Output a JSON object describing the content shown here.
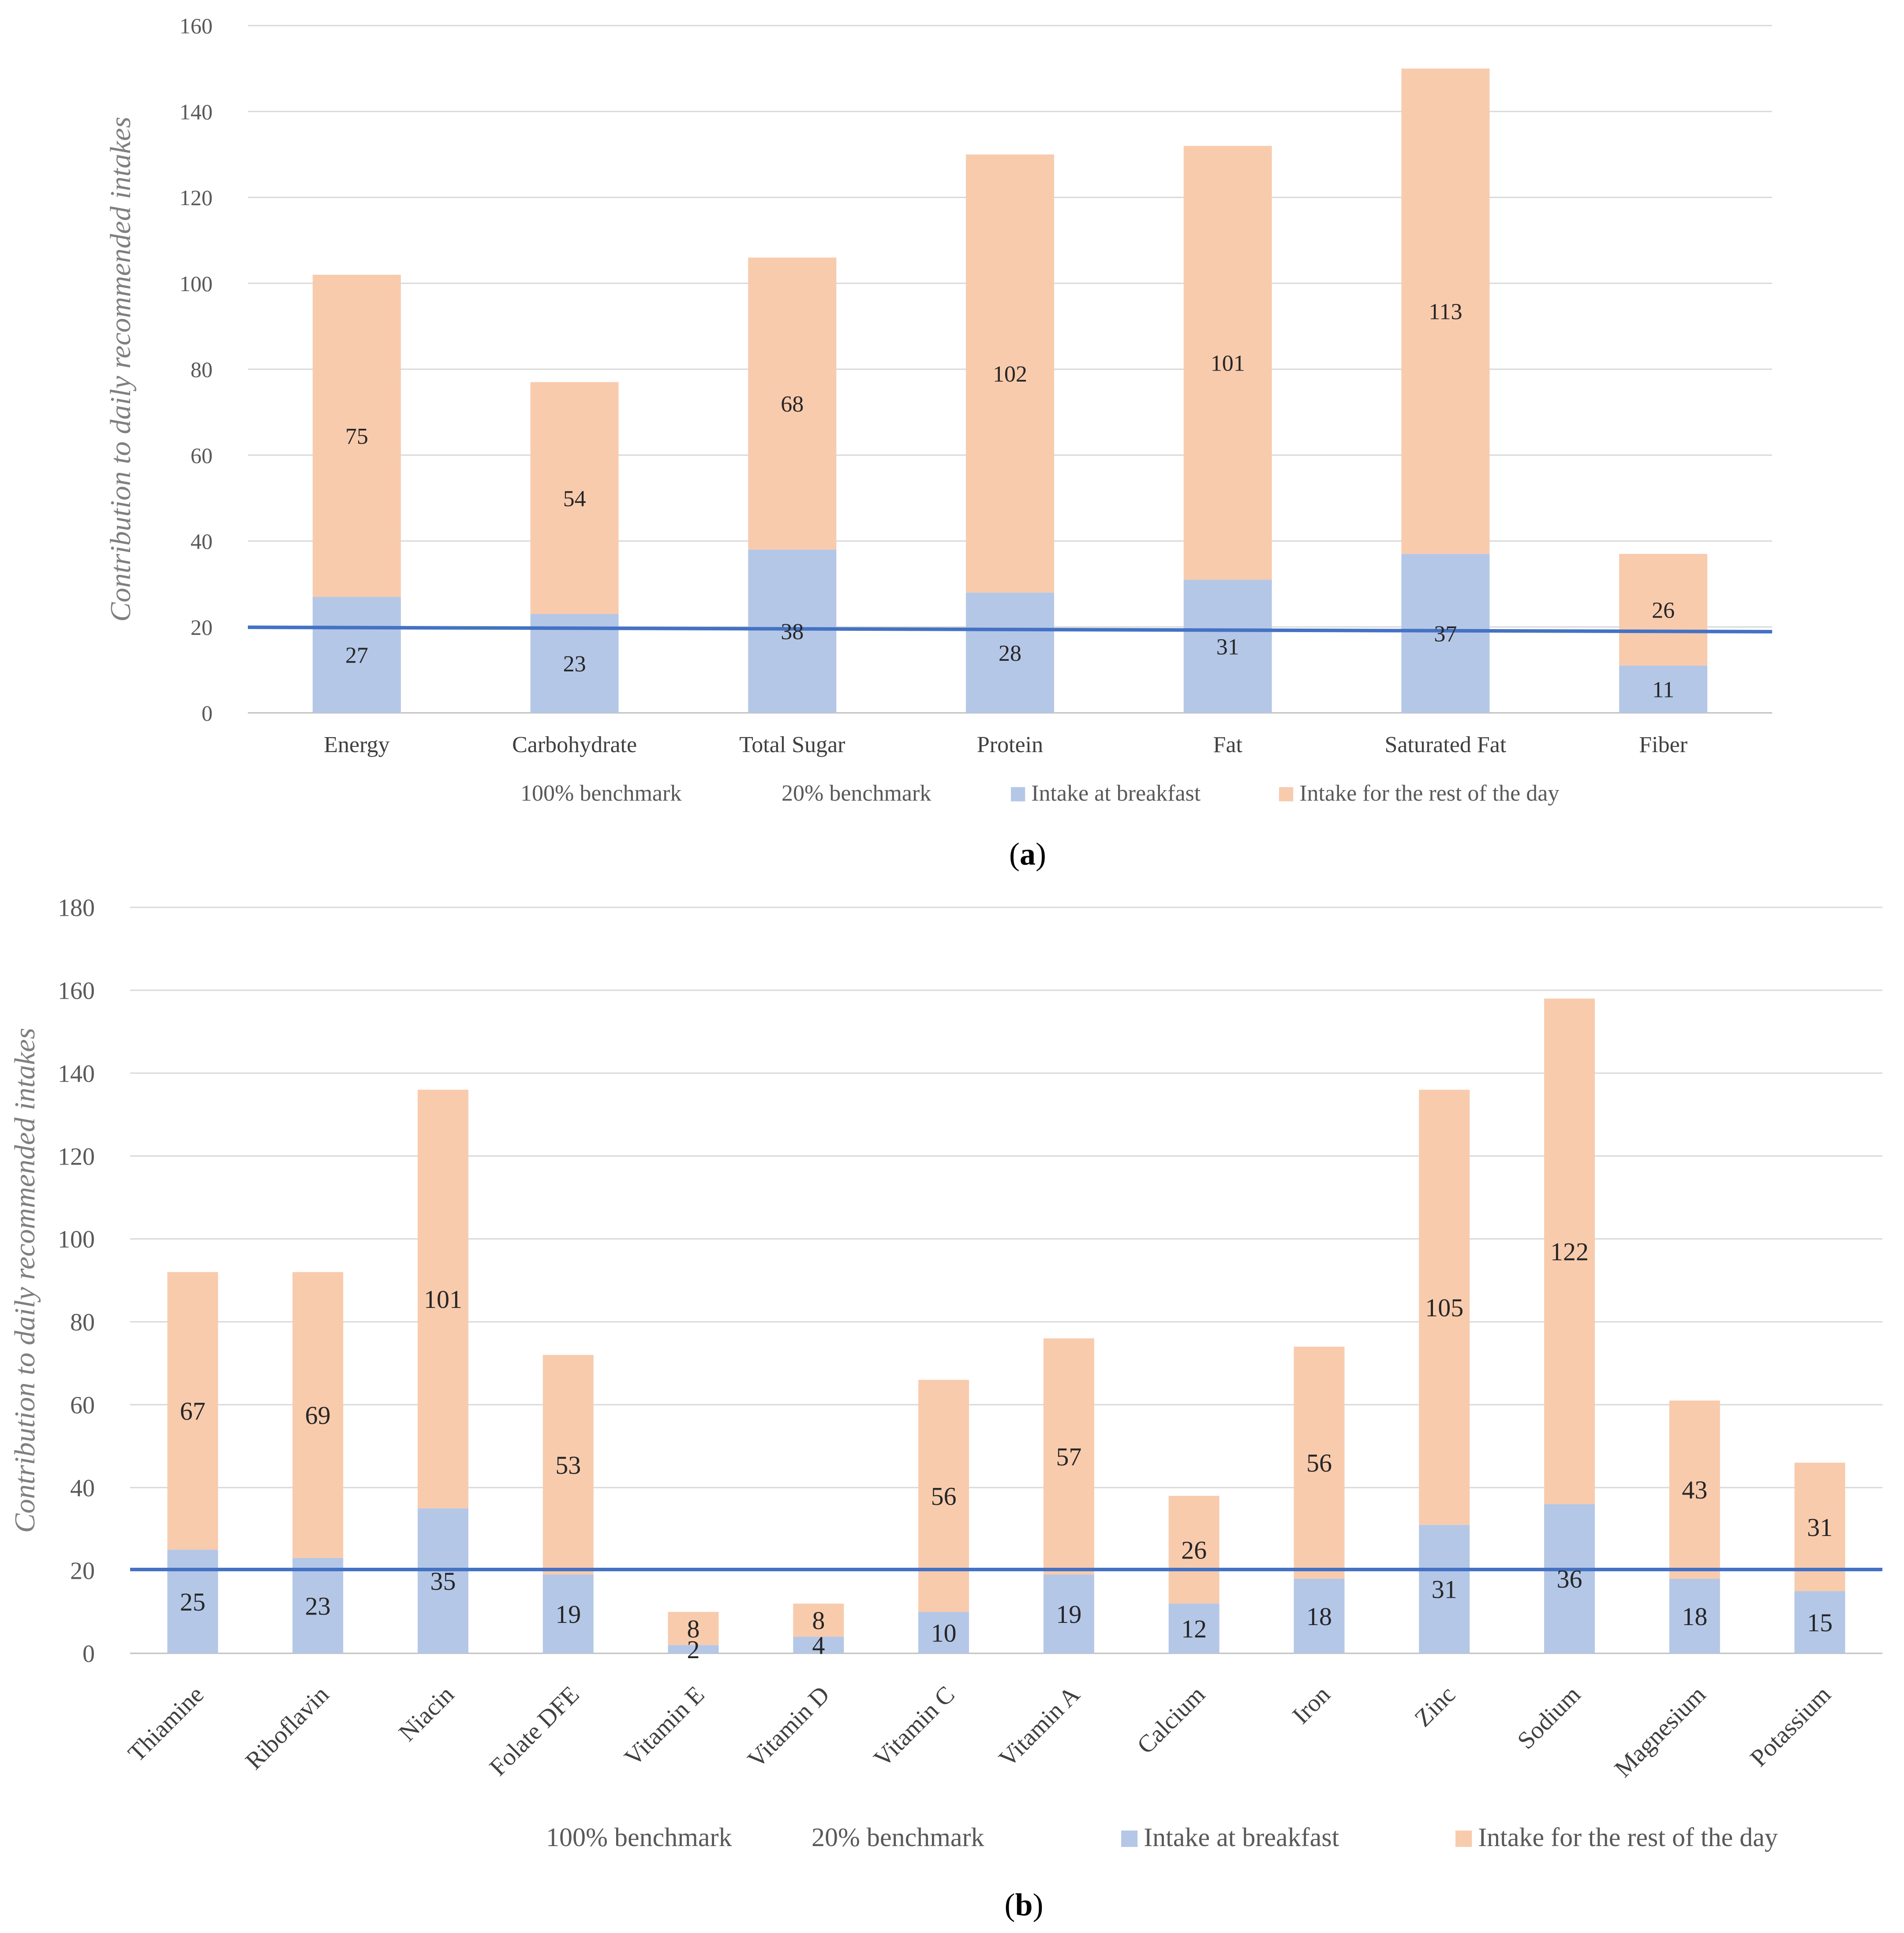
{
  "chart_data": [
    {
      "type": "bar",
      "stacked": true,
      "panel_label": "a",
      "categories": [
        "Energy",
        "Carbohydrate",
        "Total Sugar",
        "Protein",
        "Fat",
        "Saturated Fat",
        "Fiber"
      ],
      "series": [
        {
          "name": "Intake at breakfast",
          "color": "#b4c7e7",
          "values": [
            27,
            23,
            38,
            28,
            31,
            37,
            11
          ]
        },
        {
          "name": "Intake for the rest of the day",
          "color": "#f8cbad",
          "values": [
            75,
            54,
            68,
            102,
            101,
            113,
            26
          ]
        }
      ],
      "legend_extra": [
        "100% benchmark",
        "20% benchmark"
      ],
      "benchmark_line": {
        "value": 20,
        "color": "#4472c4"
      },
      "ylabel": "Contribution to daily recommended intakes",
      "ylim": [
        0,
        160
      ],
      "yticks": [
        0,
        20,
        40,
        60,
        80,
        100,
        120,
        140,
        160
      ],
      "grid": true,
      "legend_position": "bottom"
    },
    {
      "type": "bar",
      "stacked": true,
      "panel_label": "b",
      "categories": [
        "Thiamine",
        "Riboflavin",
        "Niacin",
        "Folate DFE",
        "Vitamin E",
        "Vitamin D",
        "Vitamin C",
        "Vitamin A",
        "Calcium",
        "Iron",
        "Zinc",
        "Sodium",
        "Magnesium",
        "Potassium"
      ],
      "series": [
        {
          "name": "Intake at breakfast",
          "color": "#b4c7e7",
          "values": [
            25,
            23,
            35,
            19,
            2,
            4,
            10,
            19,
            12,
            18,
            31,
            36,
            18,
            15
          ]
        },
        {
          "name": "Intake for the rest of the day",
          "color": "#f8cbad",
          "values": [
            67,
            69,
            101,
            53,
            8,
            8,
            56,
            57,
            26,
            56,
            105,
            122,
            43,
            31
          ]
        }
      ],
      "legend_extra": [
        "100% benchmark",
        "20% benchmark"
      ],
      "benchmark_line": {
        "value": 20,
        "color": "#4472c4"
      },
      "ylabel": "Contribution to daily recommended intakes",
      "ylim": [
        0,
        180
      ],
      "yticks": [
        0,
        20,
        40,
        60,
        80,
        100,
        120,
        140,
        160,
        180
      ],
      "grid": true,
      "legend_position": "bottom"
    }
  ]
}
